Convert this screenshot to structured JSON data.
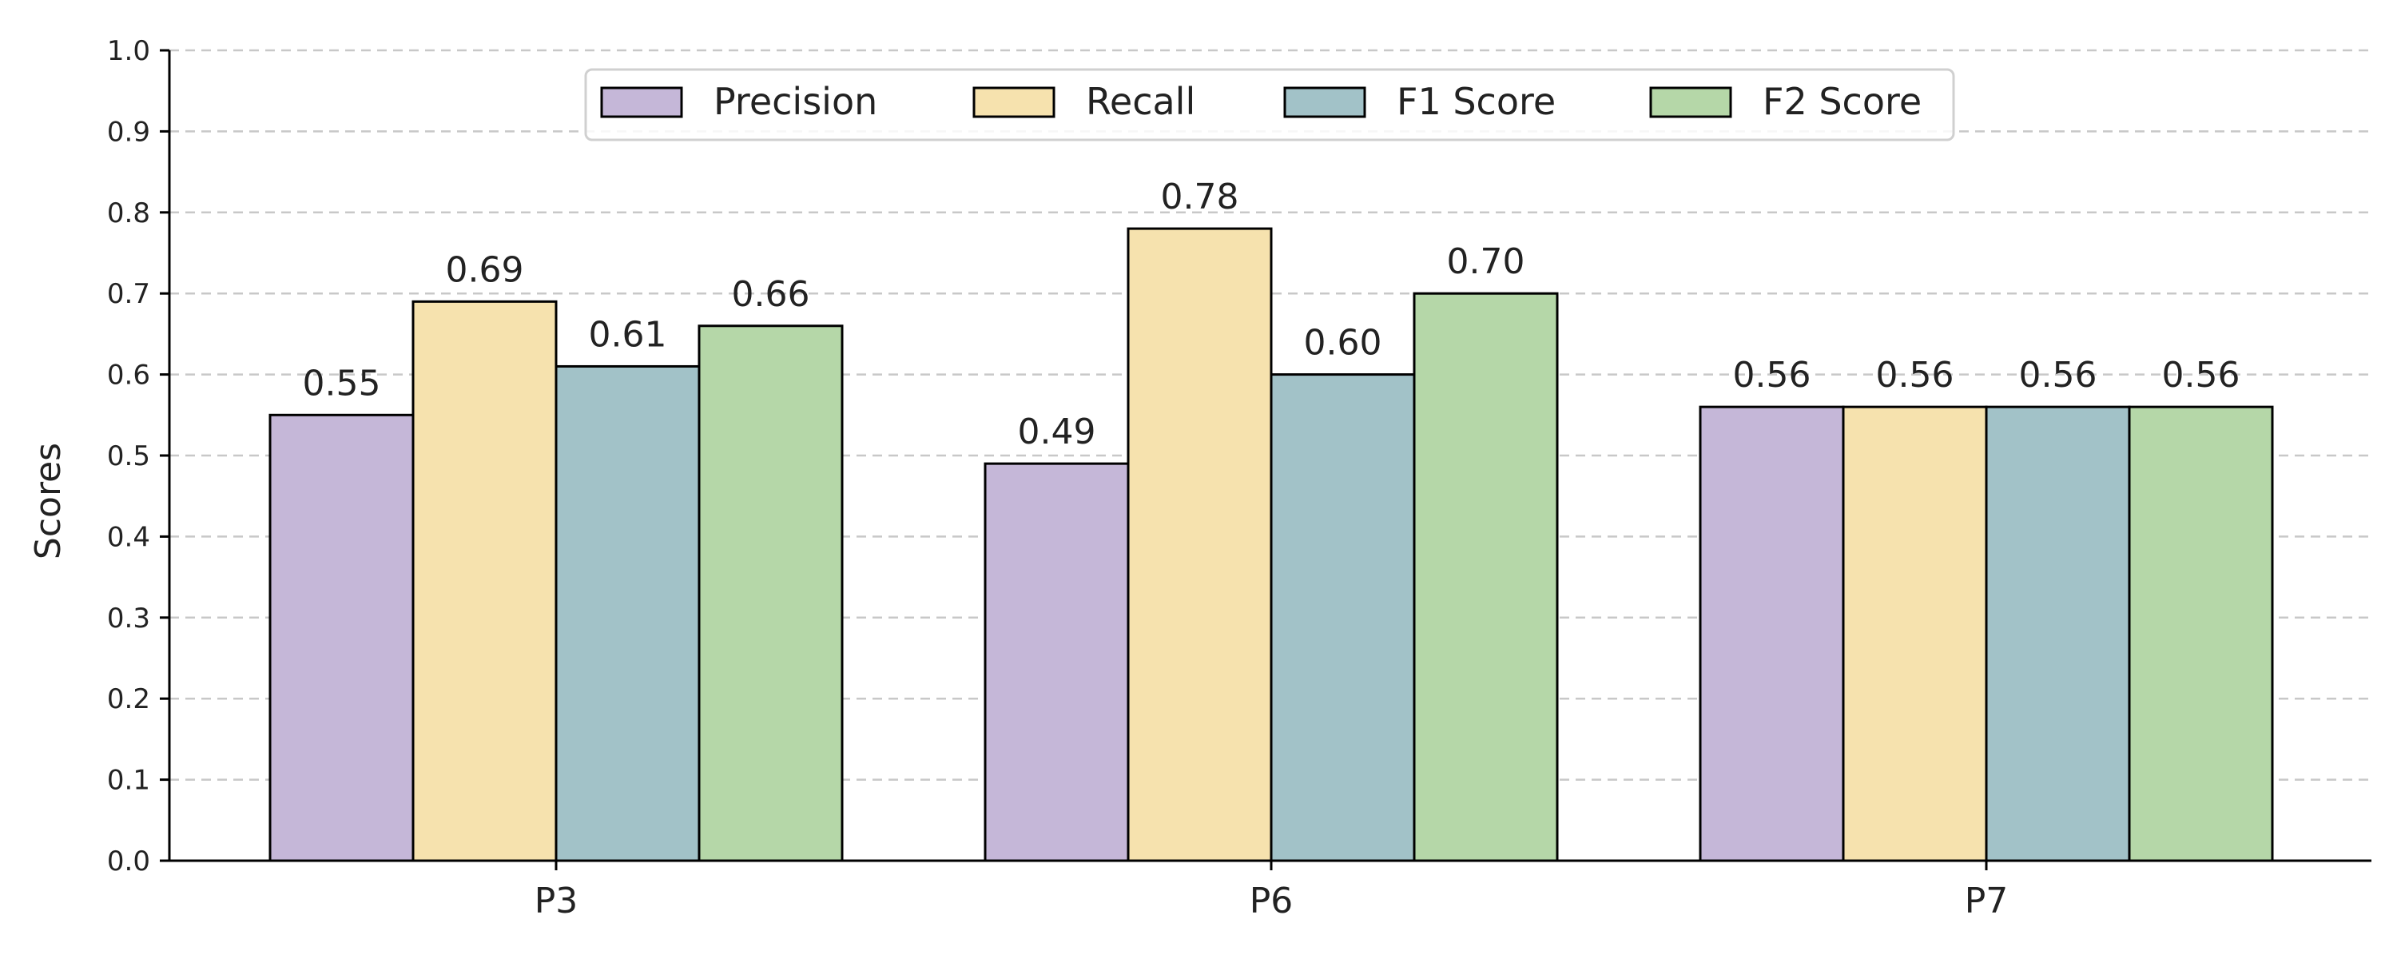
{
  "chart_data": {
    "type": "bar",
    "categories": [
      "P3",
      "P6",
      "P7"
    ],
    "series": [
      {
        "name": "Precision",
        "values": [
          0.55,
          0.49,
          0.56
        ],
        "color": "#c5b7d8"
      },
      {
        "name": "Recall",
        "values": [
          0.69,
          0.78,
          0.56
        ],
        "color": "#f6e2ae"
      },
      {
        "name": "F1 Score",
        "values": [
          0.61,
          0.6,
          0.56
        ],
        "color": "#a2c2c8"
      },
      {
        "name": "F2 Score",
        "values": [
          0.66,
          0.7,
          0.56
        ],
        "color": "#b5d7a8"
      }
    ],
    "ylabel": "Scores",
    "ylim": [
      0,
      1.0
    ],
    "yticks": [
      "0.0",
      "0.1",
      "0.2",
      "0.3",
      "0.4",
      "0.5",
      "0.6",
      "0.7",
      "0.8",
      "0.9",
      "1.0"
    ],
    "grid": true,
    "legend_position": "top-center"
  }
}
